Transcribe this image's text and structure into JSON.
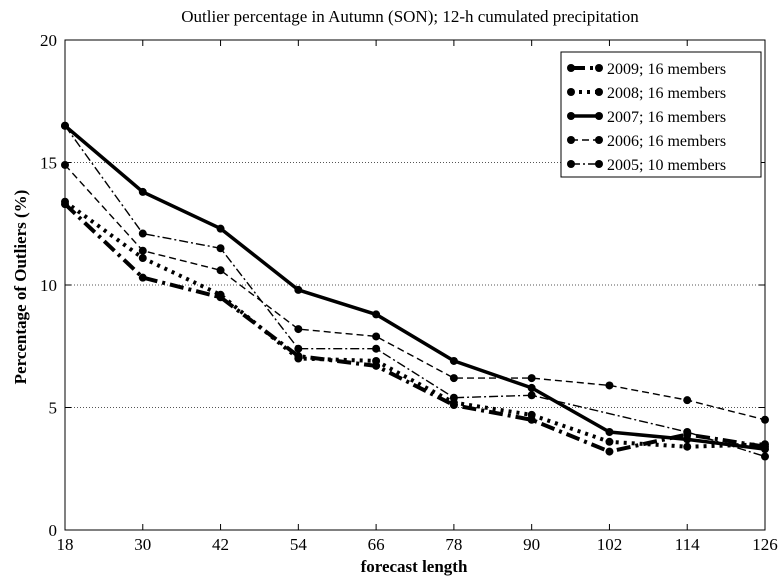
{
  "chart_data": {
    "type": "line",
    "title": "Outlier percentage in Autumn (SON); 12-h cumulated precipitation",
    "xlabel": "forecast length",
    "ylabel": "Percentage of Outliers (%)",
    "x": [
      18,
      30,
      42,
      54,
      66,
      78,
      90,
      102,
      114,
      126
    ],
    "xlim": [
      18,
      126
    ],
    "ylim": [
      0,
      20
    ],
    "xticks": [
      "18",
      "30",
      "42",
      "54",
      "66",
      "78",
      "90",
      "102",
      "114",
      "126"
    ],
    "yticks": [
      "0",
      "5",
      "10",
      "15",
      "20"
    ],
    "grid": "horizontal dotted at 5, 10, 15",
    "legend_position": "top-right",
    "series": [
      {
        "name": "2009; 16 members",
        "style": "dash-dot-thick",
        "values": [
          13.3,
          10.3,
          9.5,
          7.1,
          6.7,
          5.1,
          4.5,
          3.2,
          3.9,
          3.4
        ]
      },
      {
        "name": "2008; 16 members",
        "style": "dotted-thick",
        "values": [
          13.4,
          11.1,
          9.6,
          7.0,
          6.9,
          5.2,
          4.7,
          3.6,
          3.4,
          3.5
        ]
      },
      {
        "name": "2007; 16 members",
        "style": "solid-thick",
        "values": [
          16.5,
          13.8,
          12.3,
          9.8,
          8.8,
          6.9,
          5.8,
          4.0,
          3.7,
          3.3
        ]
      },
      {
        "name": "2006; 16 members",
        "style": "dashed",
        "values": [
          14.9,
          11.4,
          10.6,
          8.2,
          7.9,
          6.2,
          6.2,
          5.9,
          5.3,
          4.5
        ]
      },
      {
        "name": "2005; 10 members",
        "style": "dash-dot-thin",
        "values": [
          16.5,
          12.1,
          11.5,
          7.4,
          7.4,
          5.4,
          5.5,
          null,
          4.0,
          3.0
        ]
      }
    ],
    "series_color": "#000000"
  }
}
